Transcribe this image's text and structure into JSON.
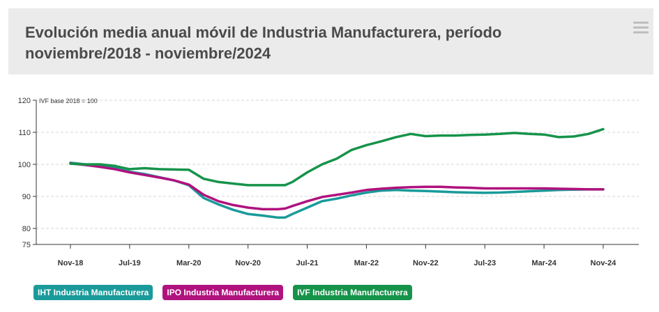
{
  "header": {
    "title": "Evolución media anual móvil de Industria Manufacturera, período noviembre/2018 - noviembre/2024",
    "menu_icon": "hamburger-menu-icon"
  },
  "chart_data": {
    "type": "line",
    "title": "Evolución media anual móvil de Industria Manufacturera, período noviembre/2018 - noviembre/2024",
    "ylabel": "IVF base 2018 = 100",
    "ylim": [
      75,
      120
    ],
    "yticks": [
      75,
      80,
      90,
      100,
      110,
      120
    ],
    "ytick_labels": [
      "75",
      "80",
      "90",
      "100",
      "110",
      "120"
    ],
    "xlim": [
      0,
      72
    ],
    "xticks": [
      0,
      8,
      16,
      24,
      32,
      40,
      48,
      56,
      64,
      72
    ],
    "xtick_labels": [
      "Nov-18",
      "Jul-19",
      "Mar-20",
      "Nov-20",
      "Jul-21",
      "Mar-22",
      "Nov-22",
      "Jul-23",
      "Mar-24",
      "Nov-24"
    ],
    "grid": true,
    "legend_position": "bottom-left",
    "series": [
      {
        "name": "IHT Industria Manufacturera",
        "color": "#1a9a9a",
        "x": [
          0,
          2,
          4,
          6,
          8,
          10,
          12,
          14,
          16,
          18,
          20,
          22,
          24,
          26,
          28,
          29,
          30,
          32,
          34,
          36,
          38,
          40,
          42,
          44,
          46,
          48,
          50,
          52,
          54,
          56,
          58,
          60,
          62,
          64,
          66,
          68,
          70,
          72
        ],
        "y": [
          100.5,
          100,
          99.3,
          98.8,
          97.7,
          97,
          96,
          95,
          93.5,
          89.5,
          87.5,
          85.8,
          84.5,
          84,
          83.4,
          83.4,
          84.5,
          86.5,
          88.5,
          89.3,
          90.3,
          91.2,
          91.8,
          92.0,
          91.8,
          91.7,
          91.5,
          91.3,
          91.2,
          91.1,
          91.2,
          91.4,
          91.6,
          91.8,
          92.0,
          92.1,
          92.2,
          92.2
        ]
      },
      {
        "name": "IPO Industria Manufacturera",
        "color": "#b0127e",
        "x": [
          0,
          2,
          4,
          6,
          8,
          10,
          12,
          14,
          16,
          18,
          20,
          22,
          24,
          26,
          28,
          29,
          30,
          32,
          34,
          36,
          38,
          40,
          42,
          44,
          46,
          48,
          50,
          52,
          54,
          56,
          58,
          60,
          62,
          64,
          66,
          68,
          70,
          72
        ],
        "y": [
          100.3,
          99.8,
          99.2,
          98.5,
          97.5,
          96.7,
          95.9,
          95,
          93.7,
          90.5,
          88.5,
          87.3,
          86.5,
          86.0,
          86.0,
          86.2,
          87,
          88.5,
          89.8,
          90.5,
          91.2,
          92.0,
          92.4,
          92.7,
          92.9,
          93.0,
          93.0,
          92.8,
          92.7,
          92.5,
          92.5,
          92.5,
          92.5,
          92.5,
          92.4,
          92.3,
          92.2,
          92.2
        ]
      },
      {
        "name": "IVF Industria Manufacturera",
        "color": "#16934a",
        "x": [
          0,
          2,
          4,
          6,
          8,
          10,
          12,
          14,
          16,
          18,
          20,
          22,
          24,
          26,
          28,
          29,
          30,
          32,
          34,
          36,
          38,
          40,
          42,
          44,
          46,
          48,
          50,
          52,
          54,
          56,
          58,
          60,
          62,
          64,
          66,
          68,
          70,
          72
        ],
        "y": [
          100.2,
          100.0,
          100.0,
          99.5,
          98.5,
          98.8,
          98.5,
          98.4,
          98.3,
          95.5,
          94.5,
          94.0,
          93.5,
          93.5,
          93.5,
          93.5,
          94.5,
          97.5,
          100,
          101.8,
          104.5,
          106,
          107.2,
          108.5,
          109.5,
          108.8,
          109.0,
          109.0,
          109.2,
          109.3,
          109.5,
          109.8,
          109.5,
          109.3,
          108.5,
          108.7,
          109.5,
          111.0
        ]
      }
    ]
  }
}
